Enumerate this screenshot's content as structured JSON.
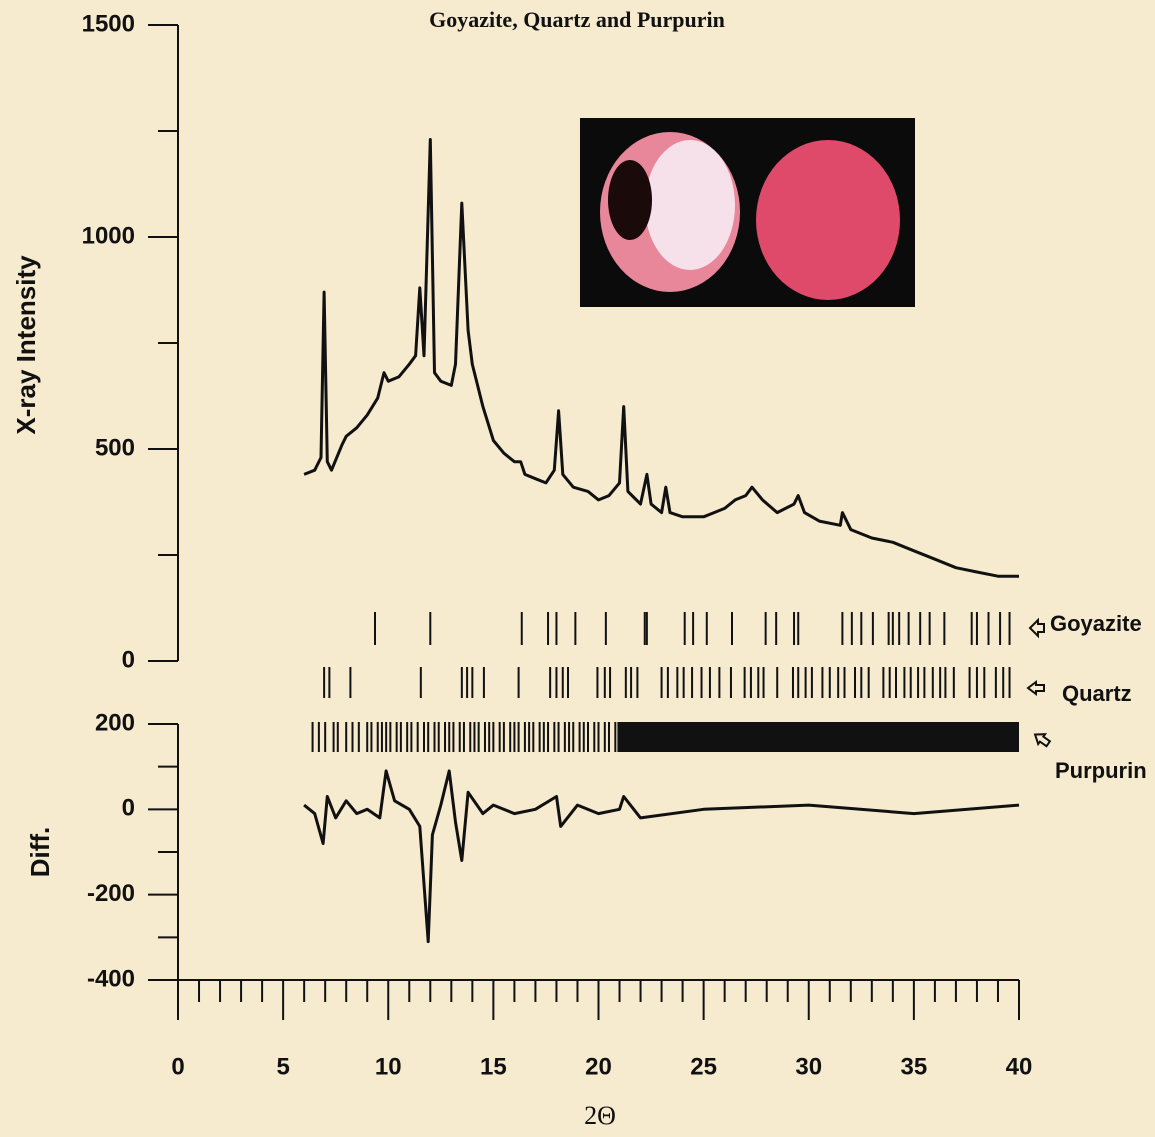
{
  "chart_data": [
    {
      "type": "line",
      "title": "Goyazite, Quartz and Purpurin",
      "y_label": "X-ray Intensity",
      "color": "#111111",
      "xlim": [
        0,
        40
      ],
      "ylim": [
        0,
        1500
      ],
      "yticks": [
        0,
        500,
        1000,
        1500
      ],
      "yminorticks": [
        250,
        750,
        1250
      ],
      "x": [
        6,
        6.5,
        6.8,
        6.95,
        7.1,
        7.3,
        7.8,
        8,
        8.5,
        9,
        9.5,
        9.8,
        10,
        10.5,
        11,
        11.3,
        11.5,
        11.7,
        12,
        12.2,
        12.5,
        13,
        13.2,
        13.5,
        13.8,
        14,
        14.5,
        15,
        15.5,
        16,
        16.3,
        16.5,
        17,
        17.5,
        17.9,
        18.1,
        18.3,
        18.8,
        19.5,
        20,
        20.5,
        21,
        21.2,
        21.4,
        22,
        22.3,
        22.5,
        23,
        23.2,
        23.4,
        24,
        25,
        25.5,
        26,
        26.5,
        27,
        27.3,
        27.8,
        28.5,
        29.3,
        29.5,
        29.8,
        30.5,
        31.5,
        31.6,
        32,
        33,
        34,
        35,
        36,
        37,
        38,
        39,
        40
      ],
      "values": [
        440,
        450,
        480,
        870,
        470,
        450,
        510,
        530,
        550,
        580,
        620,
        680,
        660,
        670,
        700,
        720,
        880,
        720,
        1230,
        680,
        660,
        650,
        700,
        1080,
        780,
        700,
        600,
        520,
        490,
        470,
        470,
        440,
        430,
        420,
        450,
        590,
        440,
        410,
        400,
        380,
        390,
        420,
        600,
        400,
        370,
        440,
        370,
        350,
        410,
        350,
        340,
        340,
        350,
        360,
        380,
        390,
        410,
        380,
        350,
        370,
        390,
        350,
        330,
        320,
        350,
        310,
        290,
        280,
        260,
        240,
        220,
        210,
        200,
        200
      ],
      "reflections": [
        {
          "name": "Goyazite",
          "positions": [
            9.37,
            12.0,
            16.35,
            17.6,
            18.0,
            18.9,
            20.35,
            22.2,
            22.3,
            24.1,
            24.5,
            25.15,
            26.35,
            27.95,
            28.45,
            29.3,
            29.5,
            31.6,
            32.05,
            32.5,
            33.05,
            33.8,
            34.0,
            34.3,
            34.75,
            35.3,
            35.75,
            36.45,
            37.75,
            38.0,
            38.55,
            39.1,
            39.55
          ]
        },
        {
          "name": "Quartz",
          "positions": [
            6.95,
            7.2,
            8.2,
            11.55,
            13.5,
            13.75,
            14.0,
            14.55,
            16.2,
            17.7,
            18.0,
            18.3,
            18.55,
            19.95,
            20.3,
            20.55,
            21.3,
            21.55,
            21.85,
            23.0,
            23.3,
            23.75,
            24.05,
            24.45,
            24.9,
            25.3,
            25.75,
            26.3,
            26.95,
            27.25,
            27.6,
            27.85,
            28.5,
            29.25,
            29.5,
            29.85,
            30.15,
            30.65,
            31.0,
            31.4,
            31.7,
            32.2,
            32.5,
            32.85,
            33.55,
            33.85,
            34.15,
            34.55,
            34.85,
            35.2,
            35.5,
            35.9,
            36.25,
            36.5,
            36.9,
            37.65,
            38.0,
            38.35,
            38.9,
            39.25,
            39.55
          ]
        },
        {
          "name": "Purpurin",
          "positions": [
            6.4,
            6.7,
            7.0,
            7.4,
            7.6,
            8.0,
            8.3,
            8.6,
            9.0,
            9.2,
            9.5,
            9.7,
            9.9,
            10.1,
            10.4,
            10.6,
            10.9,
            11.1,
            11.4,
            11.7,
            11.9,
            12.2,
            12.4,
            12.7,
            12.9,
            13.1,
            13.4,
            13.6,
            13.9,
            14.1,
            14.3,
            14.6,
            14.8,
            15.0,
            15.3,
            15.5,
            15.8,
            16.0,
            16.2,
            16.5,
            16.7,
            16.9,
            17.2,
            17.4,
            17.6,
            17.9,
            18.1,
            18.4,
            18.6,
            18.8,
            19.1,
            19.3,
            19.5,
            19.8,
            20.0,
            20.3,
            20.5,
            20.8
          ],
          "dense_ranges": [
            [
              20.9,
              40
            ]
          ]
        }
      ]
    },
    {
      "type": "line",
      "y_label": "Diff.",
      "x_label": "2Θ",
      "color": "#111111",
      "xlim": [
        0,
        40
      ],
      "xticks": [
        0,
        5,
        10,
        15,
        20,
        25,
        30,
        35,
        40
      ],
      "xminorticks": [
        1,
        2,
        3,
        4,
        6,
        7,
        8,
        9,
        11,
        12,
        13,
        14,
        16,
        17,
        18,
        19,
        21,
        22,
        23,
        24,
        26,
        27,
        28,
        29,
        31,
        32,
        33,
        34,
        36,
        37,
        38,
        39
      ],
      "ylim": [
        -400,
        200
      ],
      "yticks": [
        -400,
        -200,
        0,
        200
      ],
      "yminorticks": [
        -300,
        -100,
        100
      ],
      "x": [
        6,
        6.5,
        6.9,
        7.1,
        7.5,
        8,
        8.5,
        9,
        9.6,
        9.9,
        10.3,
        11,
        11.5,
        11.9,
        12.1,
        12.5,
        12.9,
        13.2,
        13.5,
        13.8,
        14.5,
        15,
        16,
        17,
        18,
        18.2,
        19,
        20,
        21,
        21.2,
        22,
        25,
        30,
        35,
        40
      ],
      "values": [
        10,
        -10,
        -80,
        30,
        -20,
        20,
        -10,
        0,
        -20,
        90,
        20,
        0,
        -40,
        -310,
        -60,
        10,
        90,
        -30,
        -120,
        40,
        -10,
        10,
        -10,
        0,
        30,
        -40,
        10,
        -10,
        0,
        30,
        -20,
        0,
        10,
        -10,
        10
      ]
    }
  ]
}
